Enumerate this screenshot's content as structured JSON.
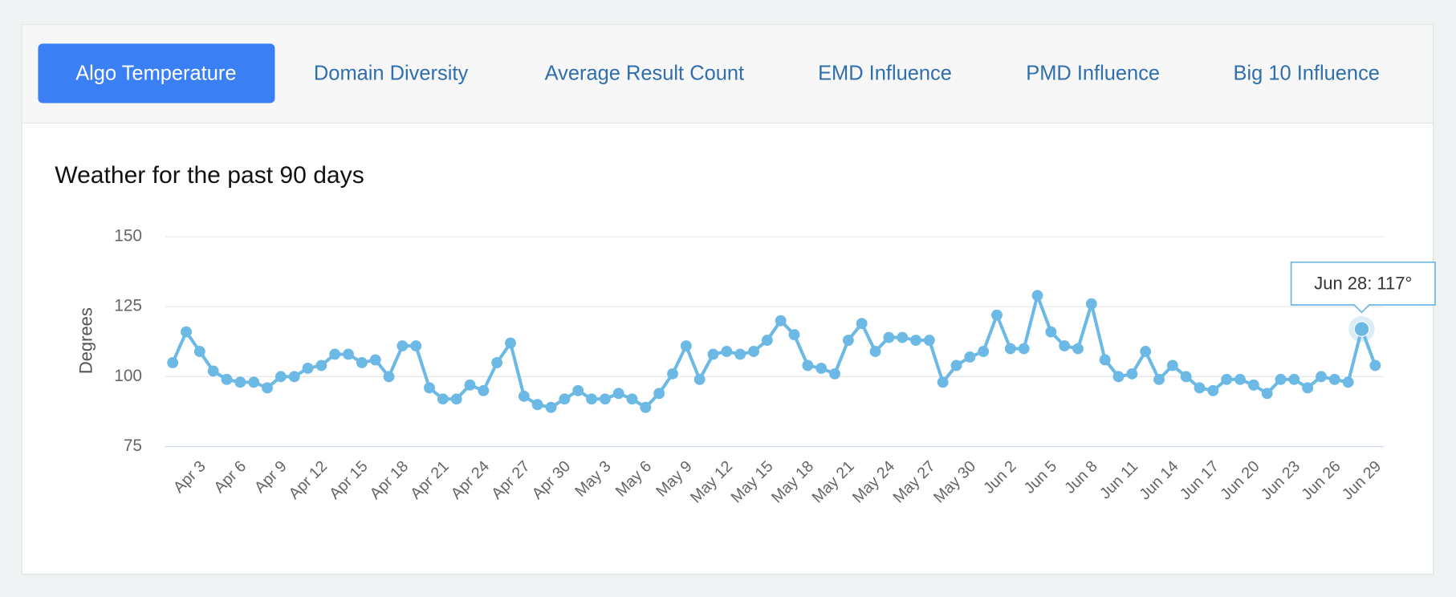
{
  "tabs": [
    "Algo Temperature",
    "Domain Diversity",
    "Average Result Count",
    "EMD Influence",
    "PMD Influence",
    "Big 10 Influence"
  ],
  "active_tab": 0,
  "chart_data": {
    "type": "line",
    "title": "Weather for the past 90 days",
    "y_label": "Degrees",
    "categories": [
      null,
      null,
      "Apr 3",
      null,
      null,
      "Apr 6",
      null,
      null,
      "Apr 9",
      null,
      null,
      "Apr 12",
      null,
      null,
      "Apr 15",
      null,
      null,
      "Apr 18",
      null,
      null,
      "Apr 21",
      null,
      null,
      "Apr 24",
      null,
      null,
      "Apr 27",
      null,
      null,
      "Apr 30",
      null,
      null,
      "May 3",
      null,
      null,
      "May 6",
      null,
      null,
      "May 9",
      null,
      null,
      "May 12",
      null,
      null,
      "May 15",
      null,
      null,
      "May 18",
      null,
      null,
      "May 21",
      null,
      null,
      "May 24",
      null,
      null,
      "May 27",
      null,
      null,
      "May 30",
      null,
      null,
      "Jun 2",
      null,
      null,
      "Jun 5",
      null,
      null,
      "Jun 8",
      null,
      null,
      "Jun 11",
      null,
      null,
      "Jun 14",
      null,
      null,
      "Jun 17",
      null,
      null,
      "Jun 20",
      null,
      null,
      "Jun 23",
      null,
      null,
      "Jun 26",
      null,
      null,
      "Jun 29"
    ],
    "series": [
      {
        "name": "Degrees",
        "color": "#6cb9e6",
        "values": [
          105,
          116,
          109,
          102,
          99,
          98,
          98,
          96,
          100,
          100,
          103,
          104,
          108,
          108,
          105,
          106,
          100,
          111,
          111,
          96,
          92,
          92,
          97,
          95,
          105,
          112,
          93,
          90,
          89,
          92,
          95,
          92,
          92,
          94,
          92,
          89,
          94,
          101,
          111,
          99,
          108,
          109,
          108,
          109,
          113,
          120,
          115,
          104,
          103,
          101,
          113,
          119,
          109,
          114,
          114,
          113,
          113,
          98,
          104,
          107,
          109,
          122,
          110,
          110,
          129,
          116,
          111,
          110,
          126,
          106,
          100,
          101,
          109,
          99,
          104,
          100,
          96,
          95,
          99,
          99,
          97,
          94,
          99,
          99,
          96,
          100,
          99,
          98,
          117,
          104
        ]
      }
    ],
    "ylim": [
      75,
      150
    ],
    "yticks": [
      75,
      100,
      125,
      150
    ],
    "grid": true,
    "tooltip": {
      "index": 88,
      "text": "Jun 28: 117°"
    }
  }
}
